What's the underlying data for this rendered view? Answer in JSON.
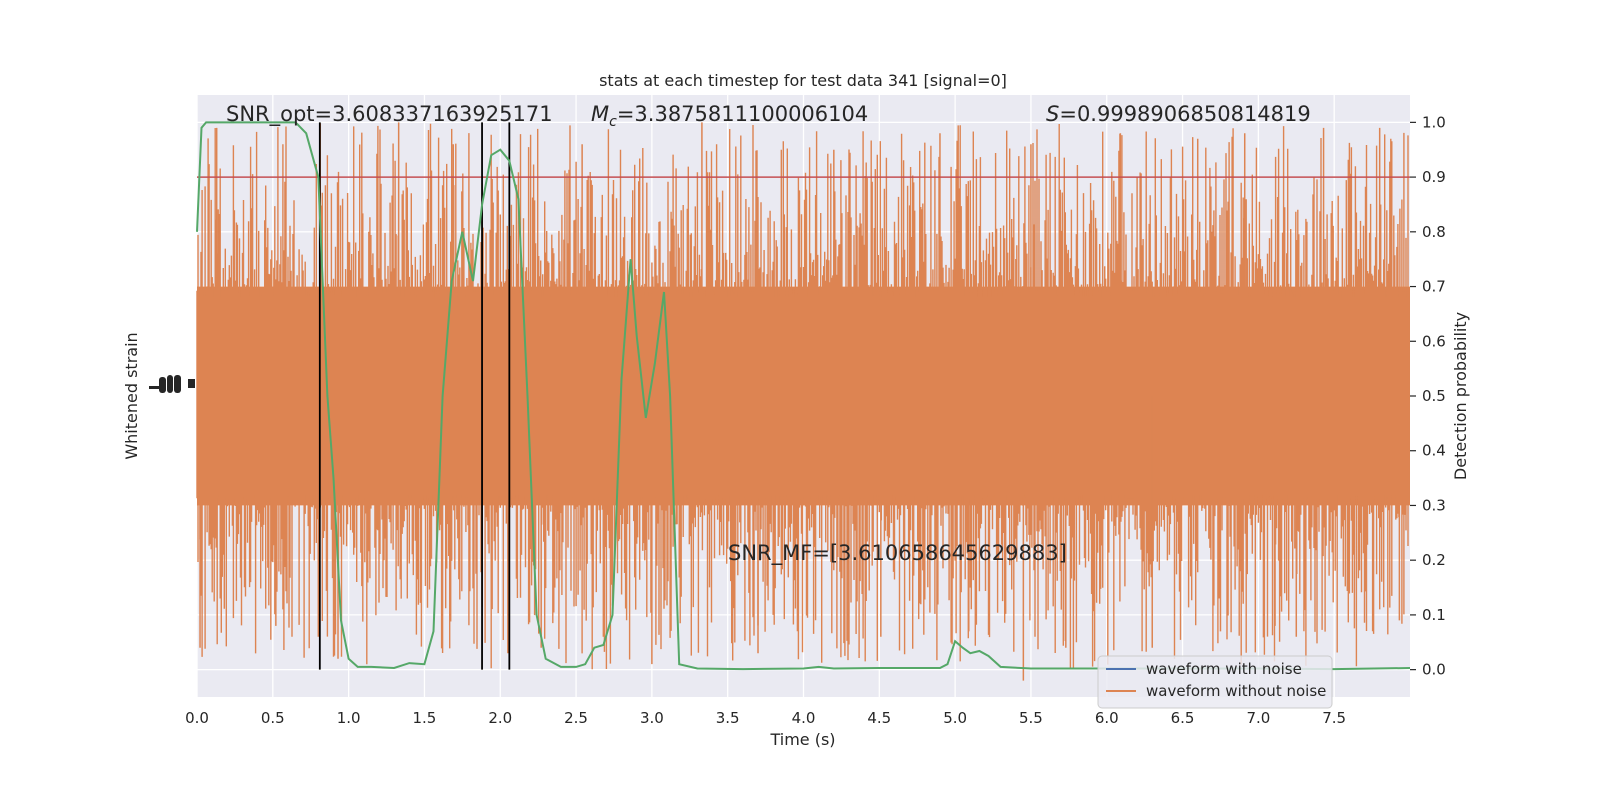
{
  "chart_data": {
    "type": "line",
    "title": "stats at each timestep for test data 341 [signal=0]",
    "xlabel": "Time (s)",
    "ylabel_left": "Whitened strain",
    "ylabel_right": "Detection probability",
    "xlim": [
      0.0,
      8.0
    ],
    "ylim_right": [
      -0.05,
      1.05
    ],
    "xticks": [
      "0.0",
      "0.5",
      "1.0",
      "1.5",
      "2.0",
      "2.5",
      "3.0",
      "3.5",
      "4.0",
      "4.5",
      "5.0",
      "5.5",
      "6.0",
      "6.5",
      "7.0",
      "7.5"
    ],
    "yticks_right": [
      "0.0",
      "0.1",
      "0.2",
      "0.3",
      "0.4",
      "0.5",
      "0.6",
      "0.7",
      "0.8",
      "0.9",
      "1.0"
    ],
    "grid": true,
    "legend_location": "lower-right",
    "legend": [
      "waveform with noise",
      "waveform without noise"
    ],
    "colors": {
      "background": "#EAEAF2",
      "grid": "#FFFFFF",
      "waveform_with_noise": "#4C72B0",
      "waveform_without_noise": "#DD8452",
      "probability": "#55A868",
      "threshold": "#C44E52",
      "markers": "#000000"
    },
    "annotations": {
      "snr_opt": "SNR_opt=3.608337163925171",
      "mc_symbol": "M",
      "mc_subscript": "c",
      "mc_value": "=3.3875811100006104",
      "s_symbol": "S",
      "s_value": "=0.9998906850814819",
      "snr_mf": "SNR_MF=[3.610658645629883]"
    },
    "threshold": 0.9,
    "vertical_markers": [
      0.81,
      1.88,
      2.06
    ],
    "strain_band": {
      "center": 0.5,
      "dense_low": 0.3,
      "dense_high": 0.7
    },
    "strain_peaks": [
      [
        0.02,
        0.04
      ],
      [
        0.13,
        0.99
      ],
      [
        0.52,
        0.08
      ],
      [
        0.8,
        0.06
      ],
      [
        0.93,
        0.02
      ],
      [
        1.33,
        1.0
      ],
      [
        1.69,
        0.96
      ],
      [
        2.05,
        0.03
      ],
      [
        2.27,
        0.04
      ],
      [
        2.54,
        0.96
      ],
      [
        2.68,
        0.06
      ],
      [
        3.0,
        0.01
      ],
      [
        3.33,
        1.0
      ],
      [
        3.7,
        0.03
      ],
      [
        3.8,
        0.1
      ],
      [
        4.2,
        0.95
      ],
      [
        4.51,
        0.06
      ],
      [
        4.9,
        0.98
      ],
      [
        5.09,
        0.07
      ],
      [
        5.45,
        -0.02
      ],
      [
        5.5,
        0.96
      ],
      [
        5.73,
        0.04
      ],
      [
        6.09,
        0.98
      ],
      [
        6.3,
        0.04
      ],
      [
        6.6,
        0.97
      ],
      [
        6.75,
        0.07
      ],
      [
        6.91,
        0.98
      ],
      [
        7.11,
        0.08
      ],
      [
        7.25,
        0.06
      ],
      [
        7.43,
        0.99
      ],
      [
        7.8,
        0.99
      ],
      [
        7.93,
        0.09
      ]
    ],
    "series": [
      {
        "name": "",
        "color": "#55A868",
        "x": [
          0.0,
          0.03,
          0.06,
          0.12,
          0.3,
          0.5,
          0.65,
          0.72,
          0.8,
          0.86,
          0.9,
          0.95,
          1.0,
          1.06,
          1.15,
          1.3,
          1.4,
          1.5,
          1.56,
          1.62,
          1.68,
          1.75,
          1.82,
          1.88,
          1.94,
          2.0,
          2.06,
          2.12,
          2.18,
          2.24,
          2.3,
          2.4,
          2.5,
          2.56,
          2.62,
          2.68,
          2.74,
          2.8,
          2.86,
          2.9,
          2.96,
          3.02,
          3.08,
          3.12,
          3.18,
          3.3,
          3.6,
          4.0,
          4.1,
          4.2,
          4.5,
          4.9,
          4.95,
          5.0,
          5.05,
          5.1,
          5.16,
          5.22,
          5.3,
          5.5,
          6.0,
          6.5,
          7.0,
          7.5,
          8.0
        ],
        "y": [
          0.8,
          0.99,
          1.0,
          1.0,
          1.0,
          1.0,
          1.0,
          0.98,
          0.9,
          0.5,
          0.35,
          0.09,
          0.02,
          0.005,
          0.005,
          0.003,
          0.012,
          0.01,
          0.07,
          0.5,
          0.71,
          0.8,
          0.71,
          0.85,
          0.94,
          0.95,
          0.93,
          0.86,
          0.5,
          0.1,
          0.02,
          0.005,
          0.005,
          0.01,
          0.04,
          0.045,
          0.1,
          0.53,
          0.75,
          0.61,
          0.46,
          0.56,
          0.69,
          0.5,
          0.01,
          0.002,
          0.001,
          0.002,
          0.005,
          0.002,
          0.003,
          0.003,
          0.01,
          0.052,
          0.04,
          0.03,
          0.034,
          0.025,
          0.005,
          0.002,
          0.002,
          0.002,
          0.002,
          0.001,
          0.003
        ]
      }
    ]
  }
}
